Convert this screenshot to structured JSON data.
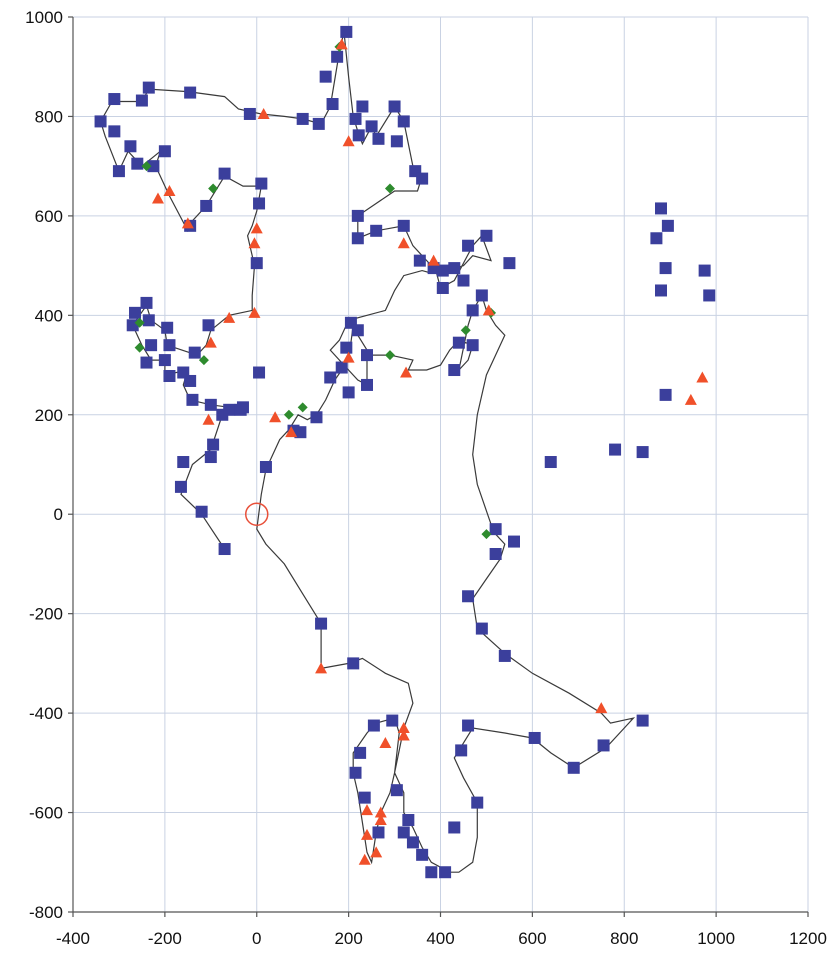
{
  "chart_data": {
    "type": "scatter",
    "xlim": [
      -400,
      1200
    ],
    "ylim": [
      -800,
      1000
    ],
    "x_ticks": [
      "-400",
      "-200",
      "0",
      "200",
      "400",
      "600",
      "800",
      "1000",
      "1200"
    ],
    "y_ticks": [
      "1000",
      "800",
      "600",
      "400",
      "200",
      "0",
      "-200",
      "-400",
      "-600",
      "-800"
    ],
    "grid": true,
    "colors": {
      "square": "#3b3f9c",
      "triangle": "#f0502a",
      "diamond": "#2e8b2e",
      "line": "#3a3a3a",
      "grid": "#c9d2e3",
      "origin": "#e8503a"
    },
    "origin_marker": {
      "x": 0,
      "y": 0
    },
    "path": [
      [
        -70,
        -70
      ],
      [
        -120,
        0
      ],
      [
        -165,
        40
      ],
      [
        -140,
        100
      ],
      [
        -100,
        130
      ],
      [
        -75,
        200
      ],
      [
        -60,
        215
      ],
      [
        -100,
        220
      ],
      [
        -145,
        230
      ],
      [
        -160,
        260
      ],
      [
        -150,
        290
      ],
      [
        -200,
        280
      ],
      [
        -200,
        310
      ],
      [
        -230,
        310
      ],
      [
        -250,
        340
      ],
      [
        -270,
        380
      ],
      [
        -255,
        400
      ],
      [
        -240,
        420
      ],
      [
        -230,
        390
      ],
      [
        -200,
        370
      ],
      [
        -195,
        340
      ],
      [
        -130,
        320
      ],
      [
        -110,
        340
      ],
      [
        -100,
        370
      ],
      [
        -60,
        400
      ],
      [
        -10,
        410
      ],
      [
        -10,
        440
      ],
      [
        -5,
        500
      ],
      [
        -20,
        560
      ],
      [
        -10,
        580
      ],
      [
        0,
        610
      ],
      [
        10,
        660
      ],
      [
        -30,
        660
      ],
      [
        -70,
        680
      ],
      [
        -110,
        620
      ],
      [
        -140,
        590
      ],
      [
        -150,
        570
      ],
      [
        -190,
        640
      ],
      [
        -200,
        660
      ],
      [
        -220,
        700
      ],
      [
        -210,
        730
      ],
      [
        -250,
        700
      ],
      [
        -280,
        730
      ],
      [
        -300,
        690
      ],
      [
        -330,
        760
      ],
      [
        -340,
        790
      ],
      [
        -315,
        830
      ],
      [
        -250,
        830
      ],
      [
        -235,
        855
      ],
      [
        -150,
        850
      ],
      [
        -70,
        840
      ],
      [
        -40,
        815
      ],
      [
        10,
        805
      ],
      [
        60,
        800
      ],
      [
        100,
        795
      ],
      [
        140,
        785
      ],
      [
        160,
        820
      ],
      [
        180,
        930
      ],
      [
        190,
        970
      ],
      [
        200,
        880
      ],
      [
        210,
        800
      ],
      [
        220,
        770
      ],
      [
        230,
        745
      ],
      [
        250,
        780
      ],
      [
        260,
        760
      ],
      [
        300,
        820
      ],
      [
        320,
        790
      ],
      [
        340,
        700
      ],
      [
        360,
        680
      ],
      [
        350,
        650
      ],
      [
        300,
        650
      ],
      [
        220,
        600
      ],
      [
        220,
        555
      ],
      [
        260,
        570
      ],
      [
        320,
        580
      ],
      [
        340,
        540
      ],
      [
        370,
        510
      ],
      [
        390,
        490
      ],
      [
        400,
        455
      ],
      [
        430,
        470
      ],
      [
        450,
        505
      ],
      [
        470,
        540
      ],
      [
        490,
        560
      ],
      [
        510,
        510
      ],
      [
        470,
        520
      ],
      [
        450,
        500
      ],
      [
        420,
        490
      ],
      [
        400,
        490
      ],
      [
        380,
        485
      ],
      [
        360,
        490
      ],
      [
        320,
        480
      ],
      [
        300,
        450
      ],
      [
        280,
        410
      ],
      [
        200,
        390
      ],
      [
        180,
        350
      ],
      [
        160,
        330
      ],
      [
        190,
        300
      ],
      [
        220,
        270
      ],
      [
        240,
        260
      ],
      [
        240,
        320
      ],
      [
        290,
        320
      ],
      [
        340,
        310
      ],
      [
        330,
        290
      ],
      [
        370,
        290
      ],
      [
        400,
        300
      ],
      [
        420,
        330
      ],
      [
        440,
        350
      ],
      [
        470,
        340
      ],
      [
        460,
        310
      ],
      [
        440,
        290
      ],
      [
        460,
        380
      ],
      [
        470,
        410
      ],
      [
        490,
        440
      ],
      [
        500,
        410
      ],
      [
        520,
        380
      ],
      [
        540,
        360
      ],
      [
        520,
        320
      ],
      [
        500,
        280
      ],
      [
        480,
        200
      ],
      [
        470,
        120
      ],
      [
        480,
        60
      ],
      [
        510,
        -20
      ],
      [
        520,
        -40
      ],
      [
        540,
        -60
      ],
      [
        530,
        -90
      ],
      [
        500,
        -130
      ],
      [
        470,
        -170
      ],
      [
        480,
        -230
      ],
      [
        540,
        -280
      ],
      [
        600,
        -320
      ],
      [
        680,
        -360
      ],
      [
        750,
        -400
      ],
      [
        770,
        -420
      ],
      [
        820,
        -410
      ],
      [
        800,
        -430
      ],
      [
        760,
        -470
      ],
      [
        690,
        -510
      ],
      [
        640,
        -480
      ],
      [
        600,
        -450
      ],
      [
        540,
        -440
      ],
      [
        470,
        -430
      ],
      [
        450,
        -460
      ],
      [
        430,
        -490
      ],
      [
        450,
        -530
      ],
      [
        480,
        -580
      ],
      [
        480,
        -650
      ],
      [
        470,
        -700
      ],
      [
        440,
        -720
      ],
      [
        420,
        -720
      ],
      [
        380,
        -700
      ],
      [
        360,
        -670
      ],
      [
        340,
        -630
      ],
      [
        320,
        -600
      ],
      [
        320,
        -560
      ],
      [
        300,
        -520
      ],
      [
        310,
        -440
      ],
      [
        300,
        -410
      ],
      [
        260,
        -420
      ],
      [
        240,
        -440
      ],
      [
        210,
        -480
      ],
      [
        210,
        -520
      ],
      [
        220,
        -560
      ],
      [
        230,
        -620
      ],
      [
        240,
        -680
      ],
      [
        250,
        -700
      ],
      [
        260,
        -640
      ],
      [
        270,
        -600
      ],
      [
        290,
        -560
      ],
      [
        300,
        -520
      ],
      [
        320,
        -430
      ],
      [
        340,
        -380
      ],
      [
        330,
        -340
      ],
      [
        280,
        -320
      ],
      [
        230,
        -290
      ],
      [
        200,
        -300
      ],
      [
        140,
        -310
      ],
      [
        140,
        -220
      ],
      [
        100,
        -160
      ],
      [
        60,
        -100
      ],
      [
        20,
        -60
      ],
      [
        0,
        -30
      ],
      [
        10,
        40
      ],
      [
        20,
        90
      ],
      [
        50,
        150
      ],
      [
        70,
        170
      ],
      [
        90,
        200
      ],
      [
        110,
        190
      ],
      [
        130,
        200
      ],
      [
        150,
        230
      ],
      [
        170,
        270
      ],
      [
        200,
        310
      ],
      [
        210,
        380
      ],
      [
        220,
        360
      ],
      [
        240,
        330
      ]
    ],
    "squares": [
      [
        -70,
        -70
      ],
      [
        -120,
        5
      ],
      [
        -165,
        55
      ],
      [
        -160,
        105
      ],
      [
        -100,
        115
      ],
      [
        -95,
        140
      ],
      [
        -75,
        200
      ],
      [
        -60,
        210
      ],
      [
        -35,
        210
      ],
      [
        -100,
        220
      ],
      [
        -140,
        230
      ],
      [
        -145,
        268
      ],
      [
        -160,
        285
      ],
      [
        -190,
        278
      ],
      [
        -200,
        310
      ],
      [
        -240,
        305
      ],
      [
        -230,
        340
      ],
      [
        -270,
        380
      ],
      [
        -265,
        405
      ],
      [
        -240,
        425
      ],
      [
        -235,
        390
      ],
      [
        -195,
        375
      ],
      [
        -190,
        340
      ],
      [
        -135,
        325
      ],
      [
        -105,
        380
      ],
      [
        -70,
        685
      ],
      [
        -110,
        620
      ],
      [
        -145,
        580
      ],
      [
        -200,
        730
      ],
      [
        -225,
        700
      ],
      [
        -260,
        705
      ],
      [
        -275,
        740
      ],
      [
        -300,
        690
      ],
      [
        -310,
        770
      ],
      [
        -340,
        790
      ],
      [
        -310,
        835
      ],
      [
        -250,
        832
      ],
      [
        -235,
        858
      ],
      [
        -145,
        848
      ],
      [
        -15,
        805
      ],
      [
        5,
        625
      ],
      [
        10,
        665
      ],
      [
        0,
        505
      ],
      [
        100,
        795
      ],
      [
        135,
        785
      ],
      [
        150,
        880
      ],
      [
        165,
        825
      ],
      [
        175,
        920
      ],
      [
        195,
        970
      ],
      [
        215,
        795
      ],
      [
        230,
        820
      ],
      [
        222,
        762
      ],
      [
        250,
        780
      ],
      [
        265,
        755
      ],
      [
        300,
        820
      ],
      [
        305,
        750
      ],
      [
        320,
        790
      ],
      [
        345,
        690
      ],
      [
        360,
        675
      ],
      [
        220,
        600
      ],
      [
        220,
        555
      ],
      [
        260,
        570
      ],
      [
        320,
        580
      ],
      [
        355,
        510
      ],
      [
        385,
        495
      ],
      [
        405,
        490
      ],
      [
        405,
        455
      ],
      [
        430,
        495
      ],
      [
        460,
        540
      ],
      [
        500,
        560
      ],
      [
        550,
        505
      ],
      [
        450,
        470
      ],
      [
        470,
        410
      ],
      [
        490,
        440
      ],
      [
        440,
        345
      ],
      [
        470,
        340
      ],
      [
        430,
        290
      ],
      [
        205,
        385
      ],
      [
        220,
        370
      ],
      [
        195,
        335
      ],
      [
        185,
        295
      ],
      [
        200,
        245
      ],
      [
        240,
        260
      ],
      [
        240,
        320
      ],
      [
        160,
        275
      ],
      [
        130,
        195
      ],
      [
        95,
        165
      ],
      [
        80,
        168
      ],
      [
        20,
        95
      ],
      [
        5,
        285
      ],
      [
        -30,
        215
      ],
      [
        520,
        -30
      ],
      [
        560,
        -55
      ],
      [
        520,
        -80
      ],
      [
        460,
        -165
      ],
      [
        490,
        -230
      ],
      [
        540,
        -285
      ],
      [
        640,
        105
      ],
      [
        780,
        130
      ],
      [
        840,
        125
      ],
      [
        890,
        240
      ],
      [
        880,
        450
      ],
      [
        890,
        495
      ],
      [
        870,
        555
      ],
      [
        880,
        615
      ],
      [
        895,
        580
      ],
      [
        975,
        490
      ],
      [
        985,
        440
      ],
      [
        840,
        -415
      ],
      [
        755,
        -465
      ],
      [
        690,
        -510
      ],
      [
        605,
        -450
      ],
      [
        460,
        -425
      ],
      [
        445,
        -475
      ],
      [
        480,
        -580
      ],
      [
        430,
        -630
      ],
      [
        410,
        -720
      ],
      [
        380,
        -720
      ],
      [
        360,
        -685
      ],
      [
        340,
        -660
      ],
      [
        320,
        -640
      ],
      [
        330,
        -615
      ],
      [
        305,
        -555
      ],
      [
        295,
        -415
      ],
      [
        255,
        -425
      ],
      [
        225,
        -480
      ],
      [
        215,
        -520
      ],
      [
        235,
        -570
      ],
      [
        265,
        -640
      ],
      [
        140,
        -220
      ],
      [
        210,
        -300
      ]
    ],
    "triangles": [
      [
        185,
        945
      ],
      [
        15,
        805
      ],
      [
        200,
        750
      ],
      [
        -215,
        635
      ],
      [
        -190,
        650
      ],
      [
        -150,
        585
      ],
      [
        -5,
        545
      ],
      [
        0,
        575
      ],
      [
        320,
        545
      ],
      [
        385,
        510
      ],
      [
        505,
        410
      ],
      [
        325,
        285
      ],
      [
        200,
        315
      ],
      [
        -100,
        345
      ],
      [
        -60,
        395
      ],
      [
        -5,
        405
      ],
      [
        40,
        195
      ],
      [
        75,
        165
      ],
      [
        -105,
        190
      ],
      [
        970,
        275
      ],
      [
        945,
        230
      ],
      [
        140,
        -310
      ],
      [
        280,
        -460
      ],
      [
        320,
        -430
      ],
      [
        320,
        -445
      ],
      [
        240,
        -595
      ],
      [
        240,
        -645
      ],
      [
        235,
        -695
      ],
      [
        270,
        -600
      ],
      [
        270,
        -615
      ],
      [
        260,
        -680
      ],
      [
        750,
        -390
      ]
    ],
    "diamonds": [
      [
        180,
        940
      ],
      [
        -240,
        700
      ],
      [
        -95,
        655
      ],
      [
        290,
        655
      ],
      [
        -255,
        335
      ],
      [
        -255,
        385
      ],
      [
        -115,
        310
      ],
      [
        100,
        215
      ],
      [
        70,
        200
      ],
      [
        290,
        320
      ],
      [
        455,
        370
      ],
      [
        510,
        405
      ],
      [
        500,
        -40
      ]
    ]
  }
}
